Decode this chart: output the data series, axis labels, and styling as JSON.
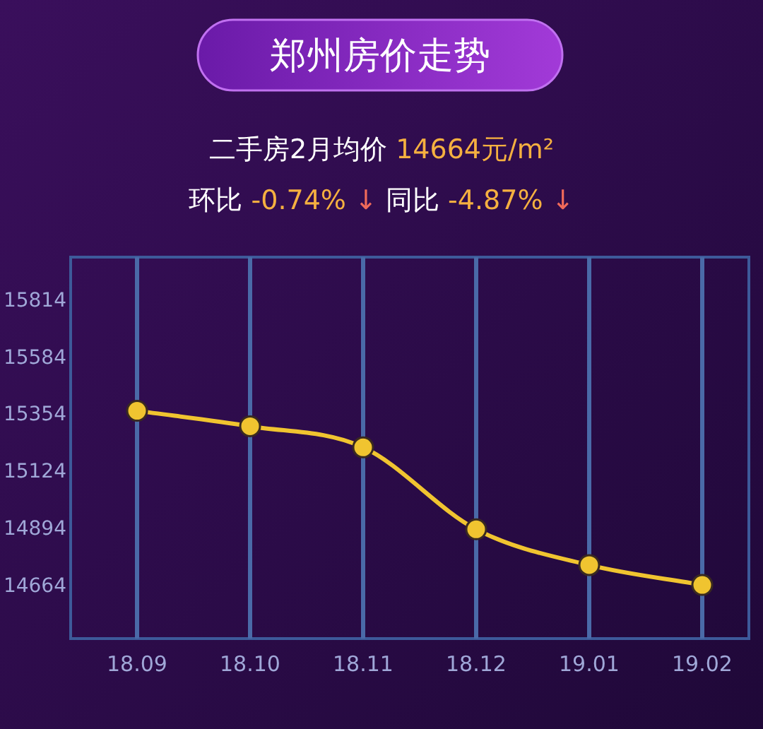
{
  "chart_data": {
    "type": "line",
    "title": "郑州房价走势",
    "subtitle": "二手房2月均价 14664元/m²",
    "annotations": [
      "环比 -0.74% ↓",
      "同比 -4.87% ↓"
    ],
    "categories": [
      "18.09",
      "18.10",
      "18.11",
      "18.12",
      "19.01",
      "19.02"
    ],
    "series": [
      {
        "color": "#f0c430",
        "values": [
          15365,
          15303,
          15218,
          14888,
          14744,
          14664
        ]
      }
    ],
    "ylim": [
      14448,
      15984
    ],
    "yticks": [
      14664,
      14894,
      15124,
      15354,
      15584,
      15814
    ],
    "grid": "x",
    "marker": "circle",
    "line_style": "solid"
  }
}
